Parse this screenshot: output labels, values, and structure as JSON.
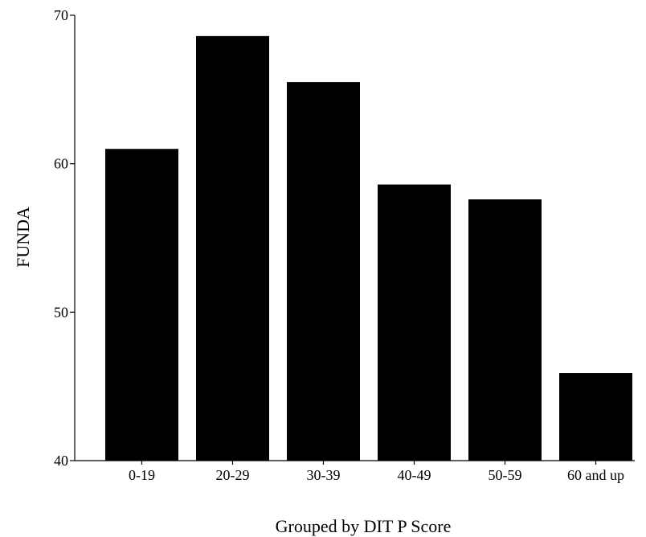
{
  "chart_data": {
    "type": "bar",
    "categories": [
      "0-19",
      "20-29",
      "30-39",
      "40-49",
      "50-59",
      "60 and up"
    ],
    "values": [
      61.0,
      68.6,
      65.5,
      58.6,
      57.6,
      45.9
    ],
    "xlabel": "Grouped by DIT P Score",
    "ylabel": "FUNDA",
    "ylim": [
      40,
      70
    ],
    "yticks": [
      40,
      50,
      60,
      70
    ],
    "bar_color": "#000000",
    "grid": false,
    "legend": "none"
  }
}
